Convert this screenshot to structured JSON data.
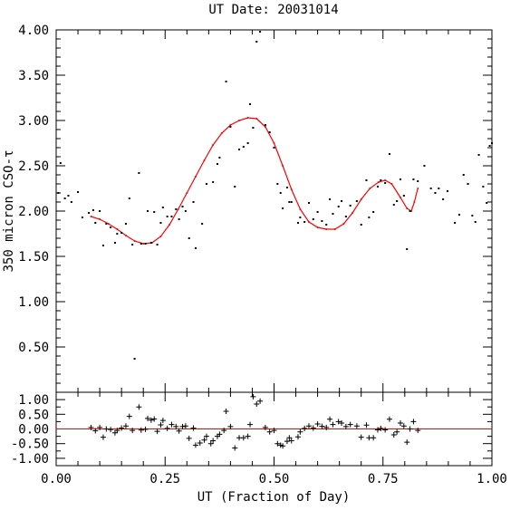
{
  "chart_data": [
    {
      "type": "scatter",
      "title": "UT Date: 20031014",
      "xlabel": "",
      "ylabel": "350 micron CSO-τ",
      "xlim": [
        0.0,
        1.0
      ],
      "ylim": [
        0.0,
        4.0
      ],
      "yticks": [
        "0.50",
        "1.00",
        "1.50",
        "2.00",
        "2.50",
        "3.00",
        "3.50",
        "4.00"
      ],
      "series": [
        {
          "kind": "points",
          "color": "#000000",
          "points": [
            [
              0.005,
              2.2
            ],
            [
              0.01,
              2.53
            ],
            [
              0.02,
              2.14
            ],
            [
              0.028,
              2.17
            ],
            [
              0.035,
              2.1
            ],
            [
              0.05,
              2.21
            ],
            [
              0.06,
              1.93
            ],
            [
              0.075,
              1.98
            ],
            [
              0.085,
              2.01
            ],
            [
              0.09,
              1.87
            ],
            [
              0.1,
              2.0
            ],
            [
              0.108,
              1.62
            ],
            [
              0.115,
              1.86
            ],
            [
              0.125,
              1.82
            ],
            [
              0.135,
              1.65
            ],
            [
              0.14,
              1.75
            ],
            [
              0.15,
              1.76
            ],
            [
              0.16,
              1.86
            ],
            [
              0.168,
              2.14
            ],
            [
              0.175,
              1.63
            ],
            [
              0.18,
              0.37
            ],
            [
              0.19,
              2.42
            ],
            [
              0.195,
              1.64
            ],
            [
              0.205,
              1.64
            ],
            [
              0.21,
              2.0
            ],
            [
              0.218,
              1.65
            ],
            [
              0.225,
              1.99
            ],
            [
              0.232,
              1.63
            ],
            [
              0.24,
              1.87
            ],
            [
              0.245,
              2.04
            ],
            [
              0.255,
              1.94
            ],
            [
              0.265,
              1.94
            ],
            [
              0.275,
              2.02
            ],
            [
              0.282,
              1.91
            ],
            [
              0.29,
              2.05
            ],
            [
              0.297,
              2.0
            ],
            [
              0.305,
              1.7
            ],
            [
              0.315,
              2.1
            ],
            [
              0.32,
              1.59
            ],
            [
              0.335,
              1.86
            ],
            [
              0.345,
              2.3
            ],
            [
              0.36,
              2.32
            ],
            [
              0.37,
              2.52
            ],
            [
              0.375,
              2.59
            ],
            [
              0.39,
              3.43
            ],
            [
              0.4,
              2.93
            ],
            [
              0.41,
              2.27
            ],
            [
              0.42,
              2.68
            ],
            [
              0.43,
              2.71
            ],
            [
              0.44,
              2.75
            ],
            [
              0.445,
              3.18
            ],
            [
              0.452,
              2.92
            ],
            [
              0.46,
              3.87
            ],
            [
              0.468,
              3.98
            ],
            [
              0.48,
              2.95
            ],
            [
              0.49,
              2.87
            ],
            [
              0.5,
              2.7
            ],
            [
              0.508,
              2.3
            ],
            [
              0.515,
              2.2
            ],
            [
              0.52,
              2.03
            ],
            [
              0.53,
              2.26
            ],
            [
              0.535,
              2.1
            ],
            [
              0.54,
              2.1
            ],
            [
              0.555,
              1.87
            ],
            [
              0.56,
              1.93
            ],
            [
              0.57,
              1.88
            ],
            [
              0.58,
              2.09
            ],
            [
              0.59,
              1.91
            ],
            [
              0.6,
              1.99
            ],
            [
              0.61,
              1.89
            ],
            [
              0.62,
              1.85
            ],
            [
              0.628,
              2.13
            ],
            [
              0.635,
              1.97
            ],
            [
              0.648,
              2.05
            ],
            [
              0.655,
              2.11
            ],
            [
              0.665,
              1.94
            ],
            [
              0.675,
              2.06
            ],
            [
              0.69,
              2.11
            ],
            [
              0.7,
              1.85
            ],
            [
              0.712,
              2.34
            ],
            [
              0.718,
              1.93
            ],
            [
              0.728,
              1.99
            ],
            [
              0.738,
              2.27
            ],
            [
              0.745,
              2.34
            ],
            [
              0.755,
              2.31
            ],
            [
              0.765,
              2.63
            ],
            [
              0.775,
              2.07
            ],
            [
              0.782,
              2.11
            ],
            [
              0.79,
              2.35
            ],
            [
              0.798,
              2.17
            ],
            [
              0.805,
              1.58
            ],
            [
              0.812,
              2.0
            ],
            [
              0.82,
              2.35
            ],
            [
              0.83,
              2.33
            ],
            [
              0.845,
              2.5
            ],
            [
              0.86,
              2.25
            ],
            [
              0.87,
              2.2
            ],
            [
              0.878,
              2.25
            ],
            [
              0.888,
              2.13
            ],
            [
              0.898,
              2.22
            ],
            [
              0.915,
              1.87
            ],
            [
              0.925,
              1.96
            ],
            [
              0.935,
              2.4
            ],
            [
              0.945,
              2.3
            ],
            [
              0.955,
              1.95
            ],
            [
              0.962,
              1.88
            ],
            [
              0.97,
              2.62
            ],
            [
              0.98,
              2.27
            ],
            [
              0.988,
              2.09
            ],
            [
              0.995,
              2.72
            ],
            [
              1.0,
              2.75
            ]
          ]
        },
        {
          "kind": "fit",
          "color": "#ff0000",
          "points": [
            [
              0.08,
              1.94
            ],
            [
              0.1,
              1.91
            ],
            [
              0.12,
              1.86
            ],
            [
              0.14,
              1.8
            ],
            [
              0.16,
              1.73
            ],
            [
              0.18,
              1.67
            ],
            [
              0.2,
              1.64
            ],
            [
              0.22,
              1.65
            ],
            [
              0.24,
              1.72
            ],
            [
              0.26,
              1.85
            ],
            [
              0.28,
              2.02
            ],
            [
              0.3,
              2.2
            ],
            [
              0.32,
              2.38
            ],
            [
              0.34,
              2.56
            ],
            [
              0.36,
              2.73
            ],
            [
              0.38,
              2.86
            ],
            [
              0.4,
              2.95
            ],
            [
              0.42,
              3.0
            ],
            [
              0.44,
              3.03
            ],
            [
              0.46,
              3.02
            ],
            [
              0.48,
              2.93
            ],
            [
              0.5,
              2.75
            ],
            [
              0.52,
              2.5
            ],
            [
              0.54,
              2.24
            ],
            [
              0.56,
              2.02
            ],
            [
              0.58,
              1.88
            ],
            [
              0.6,
              1.82
            ],
            [
              0.62,
              1.8
            ],
            [
              0.64,
              1.8
            ],
            [
              0.66,
              1.86
            ],
            [
              0.68,
              1.98
            ],
            [
              0.7,
              2.13
            ],
            [
              0.72,
              2.25
            ],
            [
              0.74,
              2.32
            ],
            [
              0.755,
              2.34
            ],
            [
              0.77,
              2.3
            ],
            [
              0.79,
              2.15
            ],
            [
              0.805,
              2.03
            ],
            [
              0.815,
              2.0
            ],
            [
              0.822,
              2.1
            ],
            [
              0.83,
              2.25
            ]
          ]
        }
      ]
    },
    {
      "type": "scatter",
      "title": "",
      "xlabel": "UT (Fraction of Day)",
      "ylabel": "",
      "xlim": [
        0.0,
        1.0
      ],
      "ylim": [
        -1.25,
        1.25
      ],
      "xticks": [
        "0.00",
        "0.25",
        "0.50",
        "0.75",
        "1.00"
      ],
      "yticks": [
        "-1.00",
        "-0.50",
        "0.00",
        "0.50",
        "1.00"
      ],
      "series": [
        {
          "kind": "residuals",
          "color": "#000000",
          "points": [
            [
              0.08,
              0.05
            ],
            [
              0.09,
              -0.06
            ],
            [
              0.1,
              0.05
            ],
            [
              0.108,
              -0.28
            ],
            [
              0.115,
              0.0
            ],
            [
              0.125,
              -0.02
            ],
            [
              0.135,
              -0.13
            ],
            [
              0.14,
              -0.05
            ],
            [
              0.15,
              0.03
            ],
            [
              0.16,
              0.1
            ],
            [
              0.168,
              0.43
            ],
            [
              0.175,
              -0.05
            ],
            [
              0.19,
              0.75
            ],
            [
              0.195,
              -0.04
            ],
            [
              0.205,
              -0.01
            ],
            [
              0.21,
              0.36
            ],
            [
              0.218,
              0.3
            ],
            [
              0.225,
              0.34
            ],
            [
              0.232,
              -0.08
            ],
            [
              0.24,
              0.14
            ],
            [
              0.245,
              0.29
            ],
            [
              0.255,
              0.02
            ],
            [
              0.265,
              0.15
            ],
            [
              0.275,
              0.08
            ],
            [
              0.282,
              -0.07
            ],
            [
              0.29,
              0.08
            ],
            [
              0.297,
              0.1
            ],
            [
              0.305,
              -0.32
            ],
            [
              0.315,
              0.03
            ],
            [
              0.32,
              -0.55
            ],
            [
              0.33,
              -0.48
            ],
            [
              0.34,
              -0.38
            ],
            [
              0.345,
              -0.25
            ],
            [
              0.355,
              -0.5
            ],
            [
              0.36,
              -0.4
            ],
            [
              0.37,
              -0.25
            ],
            [
              0.375,
              -0.18
            ],
            [
              0.385,
              -0.05
            ],
            [
              0.39,
              0.6
            ],
            [
              0.4,
              0.08
            ],
            [
              0.41,
              -0.65
            ],
            [
              0.42,
              -0.3
            ],
            [
              0.43,
              -0.3
            ],
            [
              0.44,
              -0.25
            ],
            [
              0.445,
              0.15
            ],
            [
              0.452,
              1.1
            ],
            [
              0.46,
              0.85
            ],
            [
              0.468,
              0.95
            ],
            [
              0.48,
              0.05
            ],
            [
              0.49,
              -0.1
            ],
            [
              0.5,
              -0.05
            ],
            [
              0.508,
              -0.5
            ],
            [
              0.515,
              -0.55
            ],
            [
              0.52,
              -0.58
            ],
            [
              0.53,
              -0.42
            ],
            [
              0.535,
              -0.3
            ],
            [
              0.54,
              -0.4
            ],
            [
              0.555,
              -0.27
            ],
            [
              0.56,
              -0.1
            ],
            [
              0.57,
              0.02
            ],
            [
              0.58,
              0.1
            ],
            [
              0.59,
              0.03
            ],
            [
              0.6,
              0.17
            ],
            [
              0.61,
              0.09
            ],
            [
              0.62,
              0.05
            ],
            [
              0.628,
              0.33
            ],
            [
              0.635,
              0.15
            ],
            [
              0.648,
              0.25
            ],
            [
              0.655,
              0.2
            ],
            [
              0.665,
              0.08
            ],
            [
              0.675,
              0.15
            ],
            [
              0.69,
              0.1
            ],
            [
              0.7,
              -0.28
            ],
            [
              0.712,
              0.13
            ],
            [
              0.718,
              -0.3
            ],
            [
              0.728,
              -0.3
            ],
            [
              0.738,
              -0.03
            ],
            [
              0.745,
              0.02
            ],
            [
              0.755,
              -0.03
            ],
            [
              0.765,
              0.33
            ],
            [
              0.775,
              -0.2
            ],
            [
              0.782,
              -0.1
            ],
            [
              0.79,
              0.2
            ],
            [
              0.798,
              0.1
            ],
            [
              0.805,
              -0.45
            ],
            [
              0.812,
              0.0
            ],
            [
              0.82,
              0.25
            ],
            [
              0.83,
              -0.05
            ]
          ]
        },
        {
          "kind": "zero-line",
          "color": "#ff0000",
          "points": [
            [
              0.0,
              0.0
            ],
            [
              1.0,
              0.0
            ]
          ]
        }
      ]
    }
  ]
}
